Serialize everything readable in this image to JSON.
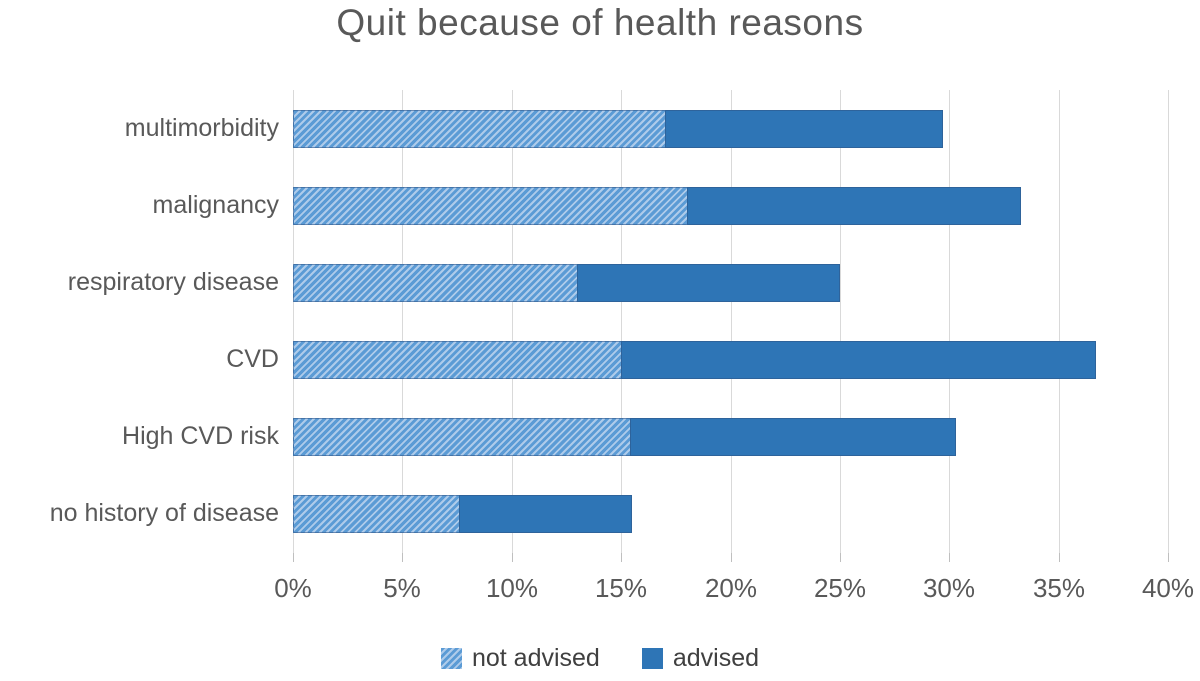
{
  "title": "Quit because of health reasons",
  "chart_data": {
    "type": "bar",
    "orientation": "horizontal",
    "stacked": true,
    "title": "Quit because of health reasons",
    "categories": [
      "multimorbidity",
      "malignancy",
      "respiratory disease",
      "CVD",
      "High CVD risk",
      "no history of disease"
    ],
    "series": [
      {
        "name": "not advised",
        "style": "hatched",
        "values": [
          17.0,
          18.0,
          13.0,
          15.0,
          15.4,
          7.6
        ]
      },
      {
        "name": "advised",
        "style": "solid",
        "values": [
          12.7,
          15.3,
          12.0,
          21.7,
          14.9,
          7.9
        ]
      }
    ],
    "totals": [
      29.7,
      33.3,
      25.0,
      36.7,
      30.3,
      15.5
    ],
    "xlabel": "",
    "ylabel": "",
    "xlim": [
      0,
      40
    ],
    "x_tick_step": 5,
    "x_ticks": [
      "0%",
      "5%",
      "10%",
      "15%",
      "20%",
      "25%",
      "30%",
      "35%",
      "40%"
    ],
    "grid": "vertical",
    "legend_position": "bottom",
    "colors": {
      "advised": "#2e75b6",
      "not_advised_stripe": "#5b9bd5",
      "not_advised_stripe_light": "#aecbea",
      "gridline": "#d9d9d9",
      "text": "#595959",
      "title": "#595959"
    }
  },
  "legend": {
    "items": [
      {
        "label": "not advised",
        "style": "hatched"
      },
      {
        "label": "advised",
        "style": "solid"
      }
    ]
  }
}
